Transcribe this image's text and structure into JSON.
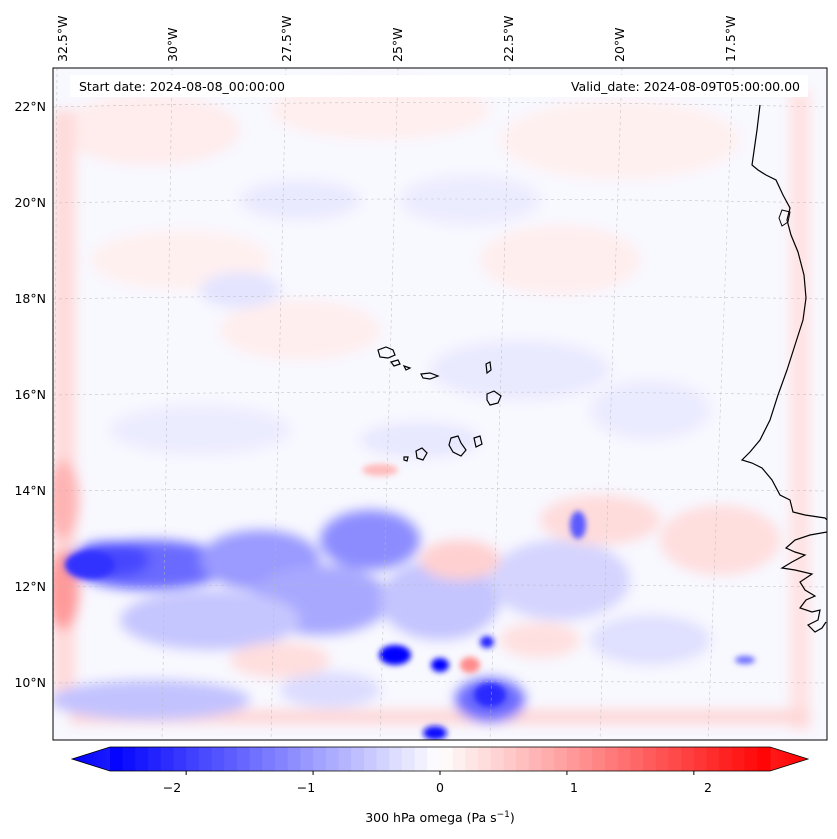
{
  "header": {
    "start_date": "Start date: 2024-08-08_00:00:00",
    "valid_date": "Valid_date: 2024-08-09T05:00:00.00"
  },
  "axes": {
    "lon_labels": [
      "32.5°W",
      "30°W",
      "27.5°W",
      "25°W",
      "22.5°W",
      "20°W",
      "17.5°W"
    ],
    "lat_labels": [
      "22°N",
      "20°N",
      "18°N",
      "16°N",
      "14°N",
      "12°N",
      "10°N"
    ]
  },
  "colorbar": {
    "label": "300 hPa omega (Pa s",
    "label_exp": "−1",
    "label_close": ")",
    "ticks": [
      "−2",
      "−1",
      "0",
      "1",
      "2"
    ],
    "range": [
      -2.6,
      2.6
    ],
    "colormap": "bwr",
    "extend": "both",
    "neg_color": "#0000ff",
    "zero_color": "#ffffff",
    "pos_color": "#ff0000"
  },
  "map": {
    "variable": "omega",
    "level_hpa": 300,
    "gridlines": true,
    "coastline_color": "#000000"
  }
}
